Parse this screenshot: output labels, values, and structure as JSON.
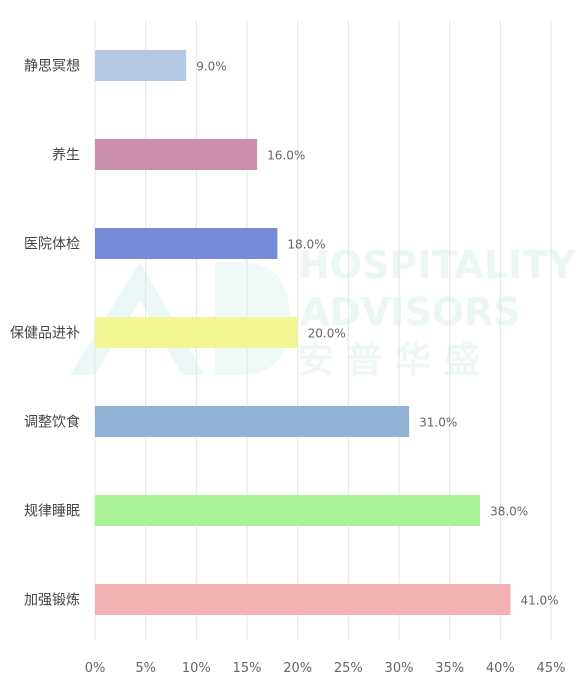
{
  "chart_data": {
    "type": "bar",
    "orientation": "horizontal",
    "categories": [
      "静思冥想",
      "养生",
      "医院体检",
      "保健品进补",
      "调整饮食",
      "规律睡眠",
      "加强锻炼"
    ],
    "values": [
      9.0,
      16.0,
      18.0,
      20.0,
      31.0,
      38.0,
      41.0
    ],
    "data_labels": [
      "9.0%",
      "16.0%",
      "18.0%",
      "20.0%",
      "31.0%",
      "38.0%",
      "41.0%"
    ],
    "colors": [
      "#b3c9e3",
      "#cc8ead",
      "#778bd8",
      "#f4f594",
      "#91b1d5",
      "#a9f294",
      "#f3b3b3"
    ],
    "xlim": [
      0,
      45
    ],
    "x_ticks": [
      "0%",
      "5%",
      "10%",
      "15%",
      "20%",
      "25%",
      "30%",
      "35%",
      "40%",
      "45%"
    ],
    "grid": true,
    "legend": "none",
    "title": "",
    "xlabel": "",
    "ylabel": ""
  },
  "watermark": {
    "line1": "HOSPITALITY",
    "line2": "ADVISORS",
    "line3": "安 普 华 盛"
  }
}
